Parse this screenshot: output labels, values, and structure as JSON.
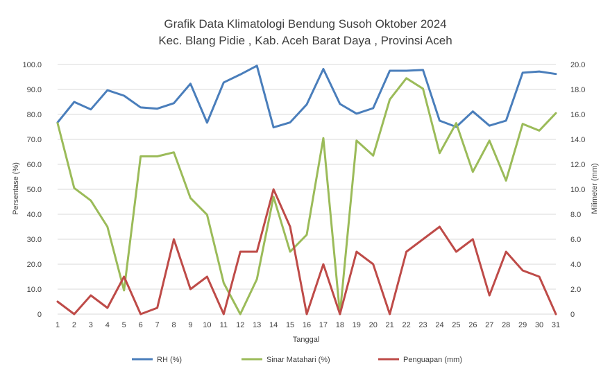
{
  "chart_data": {
    "type": "line",
    "title": "Grafik Data Klimatologi Bendung Susoh Oktober 2024",
    "subtitle": "Kec. Blang Pidie , Kab. Aceh Barat Daya  , Provinsi  Aceh",
    "xlabel": "Tanggal",
    "ylabel": "Persentase (%)",
    "y2label": "Milimeter (mm)",
    "categories": [
      "1",
      "2",
      "3",
      "4",
      "5",
      "6",
      "7",
      "8",
      "9",
      "10",
      "11",
      "12",
      "13",
      "14",
      "15",
      "16",
      "17",
      "18",
      "19",
      "20",
      "21",
      "22",
      "23",
      "24",
      "25",
      "26",
      "27",
      "28",
      "29",
      "30",
      "31"
    ],
    "ylim": [
      0,
      100
    ],
    "y2lim": [
      0,
      20
    ],
    "yticks": [
      "0",
      "10.0",
      "20.0",
      "30.0",
      "40.0",
      "50.0",
      "60.0",
      "70.0",
      "80.0",
      "90.0",
      "100.0"
    ],
    "y2ticks": [
      "0",
      "2.0",
      "4.0",
      "6.0",
      "8.0",
      "10.0",
      "12.0",
      "14.0",
      "16.0",
      "18.0",
      "20.0"
    ],
    "grid": true,
    "legend_position": "bottom",
    "series": [
      {
        "name": "RH (%)",
        "axis": "left",
        "color": "#4a7ebb",
        "values": [
          76.8,
          85.0,
          82.0,
          89.7,
          87.5,
          82.8,
          82.3,
          84.5,
          92.3,
          76.7,
          92.8,
          96.0,
          99.5,
          74.8,
          76.8,
          84.0,
          98.2,
          84.2,
          80.3,
          82.5,
          97.5,
          97.5,
          97.8,
          77.5,
          75.0,
          81.2,
          75.5,
          77.5,
          96.7,
          97.2,
          96.2
        ]
      },
      {
        "name": "Sinar Matahari (%)",
        "axis": "left",
        "color": "#9bbb59",
        "values": [
          76.5,
          50.5,
          45.5,
          35.0,
          9.5,
          63.2,
          63.2,
          64.8,
          46.5,
          39.8,
          12.5,
          0.0,
          14.0,
          47.0,
          25.0,
          31.8,
          70.5,
          0.0,
          69.5,
          63.5,
          86.0,
          94.5,
          90.3,
          64.5,
          76.5,
          57.0,
          69.5,
          53.5,
          76.2,
          73.5,
          80.5
        ]
      },
      {
        "name": "Penguapan (mm)",
        "axis": "right",
        "color": "#be4b48",
        "values": [
          1.0,
          0.0,
          1.5,
          0.5,
          3.0,
          0.0,
          0.5,
          6.0,
          2.0,
          3.0,
          0.0,
          5.0,
          5.0,
          10.0,
          7.0,
          0.0,
          4.0,
          0.0,
          5.0,
          4.0,
          0.0,
          5.0,
          6.0,
          7.0,
          5.0,
          6.0,
          1.5,
          5.0,
          3.5,
          3.0,
          0.0
        ]
      }
    ]
  }
}
